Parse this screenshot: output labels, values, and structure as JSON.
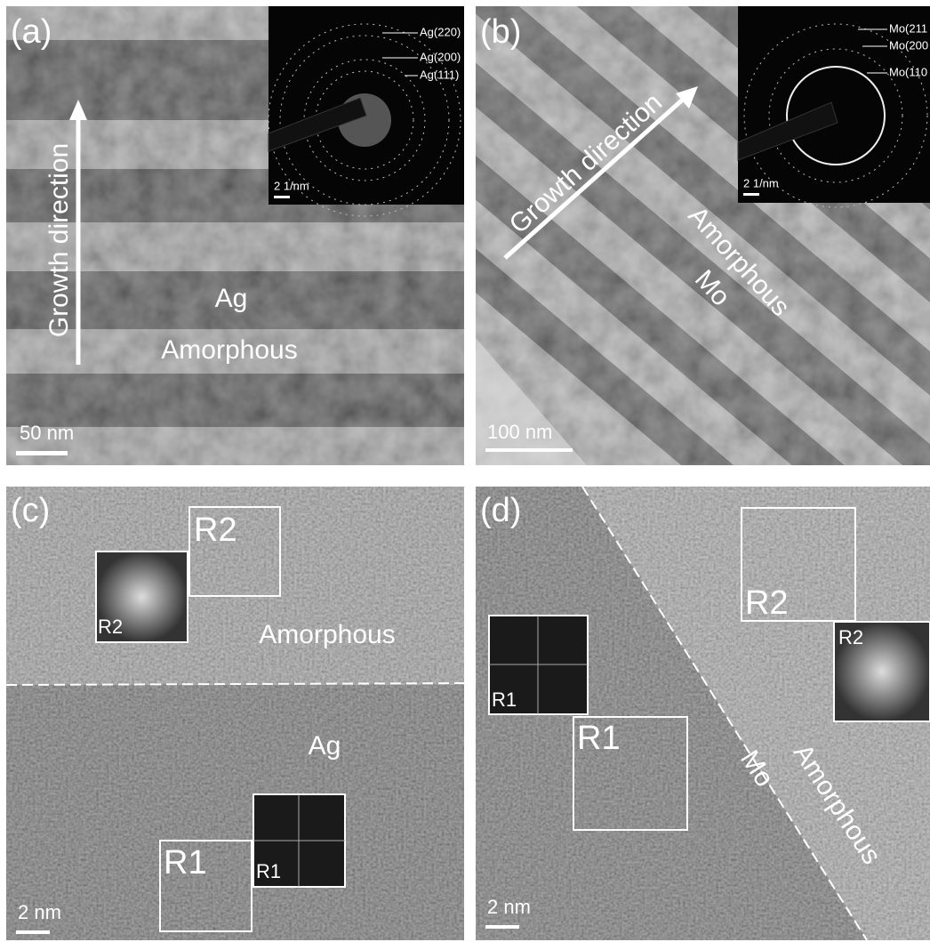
{
  "panels": [
    {
      "label": "(a)",
      "annotations": [
        "Growth direction",
        "Ag",
        "Amorphous"
      ],
      "scale_bar": "50 nm",
      "inset": {
        "rings": [
          "Ag(220)",
          "Ag(200)",
          "Ag(111)"
        ],
        "scale_bar": "2 1/nm"
      }
    },
    {
      "label": "(b)",
      "annotations": [
        "Growth direction",
        "Amorphous",
        "Mo"
      ],
      "scale_bar": "100 nm",
      "inset": {
        "rings": [
          "Mo(211",
          "Mo(200",
          "Mo(110"
        ],
        "scale_bar": "2 1/nm"
      }
    },
    {
      "label": "(c)",
      "annotations": [
        "Amorphous",
        "Ag"
      ],
      "scale_bar": "2 nm",
      "regions": [
        "R2",
        "R1"
      ],
      "inset_labels": [
        "R2",
        "R1"
      ]
    },
    {
      "label": "(d)",
      "annotations": [
        "Amorphous",
        "Mo"
      ],
      "scale_bar": "2 nm",
      "regions": [
        "R2",
        "R1"
      ],
      "inset_labels": [
        "R2",
        "R1"
      ]
    }
  ]
}
